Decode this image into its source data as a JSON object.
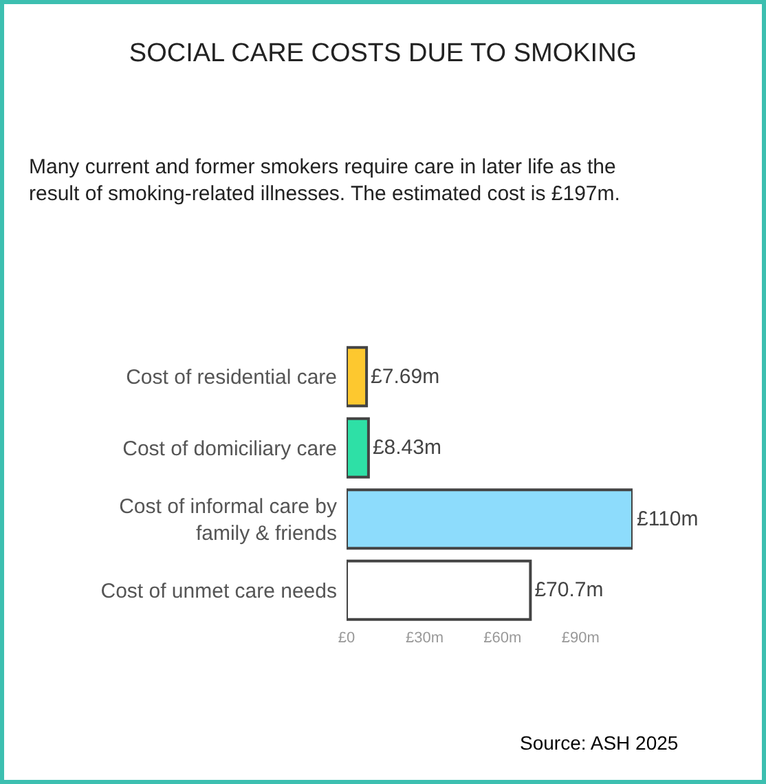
{
  "chart_data": {
    "type": "bar",
    "orientation": "horizontal",
    "title": "SOCIAL CARE COSTS DUE TO SMOKING",
    "subtitle": "Many current and former smokers require care in later life as the result of smoking-related illnesses. The estimated cost is £197m.",
    "categories": [
      "Cost of residential care",
      "Cost of domiciliary care",
      "Cost of informal care by family & friends",
      "Cost of unmet care needs"
    ],
    "values": [
      7.69,
      8.43,
      110,
      70.7
    ],
    "colors": [
      "#fdc82f",
      "#2ee0a6",
      "#8ddcfc",
      "#ffffff"
    ],
    "value_labels": [
      "£7.69m",
      "£8.43m",
      "£110m",
      "£70.7m"
    ],
    "xlim": [
      0,
      110
    ],
    "xticks": [
      {
        "value": 0,
        "label": "£0"
      },
      {
        "value": 30,
        "label": "£30m"
      },
      {
        "value": 60,
        "label": "£60m"
      },
      {
        "value": 90,
        "label": "£90m"
      }
    ],
    "grid": false,
    "legend": false,
    "annotations": [
      "Source: ASH 2025"
    ]
  }
}
